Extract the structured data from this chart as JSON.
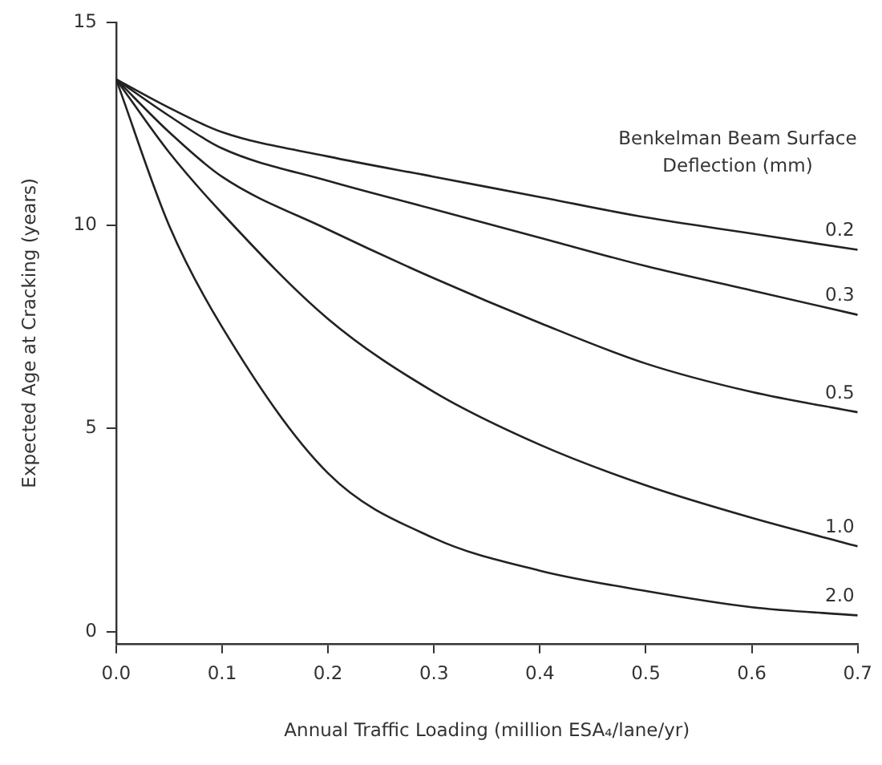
{
  "chart_data": {
    "type": "line",
    "xlabel": "Annual Traffic Loading (million ESA₄/lane/yr)",
    "ylabel": "Expected Age at Cracking (years)",
    "legend_title": "Benkelman Beam Surface Deflection (mm)",
    "x": [
      0,
      0.05,
      0.1,
      0.2,
      0.3,
      0.4,
      0.5,
      0.6,
      0.7
    ],
    "series": [
      {
        "name": "0.2",
        "color": "#222222",
        "values": [
          13.6,
          12.9,
          12.3,
          11.7,
          11.2,
          10.7,
          10.2,
          9.8,
          9.4
        ]
      },
      {
        "name": "0.3",
        "color": "#222222",
        "values": [
          13.6,
          12.7,
          11.9,
          11.1,
          10.4,
          9.7,
          9.0,
          8.4,
          7.8
        ]
      },
      {
        "name": "0.5",
        "color": "#222222",
        "values": [
          13.6,
          12.3,
          11.2,
          9.9,
          8.7,
          7.6,
          6.6,
          5.9,
          5.4
        ]
      },
      {
        "name": "1.0",
        "color": "#222222",
        "values": [
          13.6,
          11.8,
          10.3,
          7.7,
          5.9,
          4.6,
          3.6,
          2.8,
          2.1
        ]
      },
      {
        "name": "2.0",
        "color": "#222222",
        "values": [
          13.6,
          10.0,
          7.5,
          3.9,
          2.3,
          1.5,
          1.0,
          0.6,
          0.4
        ]
      }
    ],
    "xlim": [
      0,
      0.7
    ],
    "xticks": [
      {
        "value": 0,
        "label": "0.0"
      },
      0.1,
      0.2,
      0.3,
      0.4,
      0.5,
      0.6,
      0.7
    ],
    "ylim": [
      -0.3,
      15
    ],
    "yticks": [
      0,
      5,
      10,
      15
    ],
    "grid": false,
    "legend": false,
    "marker": "none",
    "line_style": "solid"
  }
}
